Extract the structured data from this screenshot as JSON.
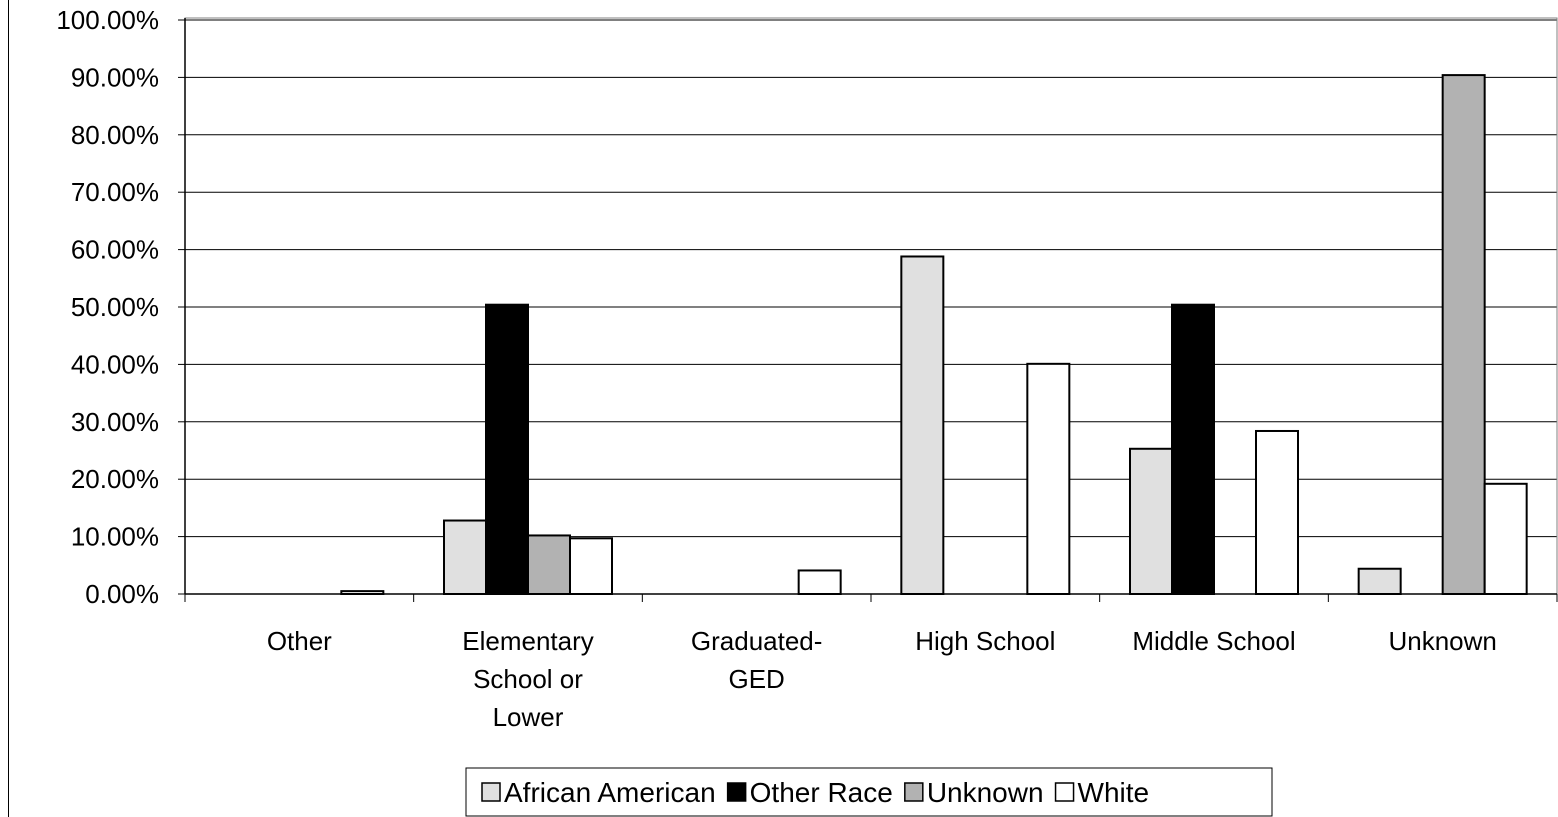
{
  "chart_data": {
    "type": "bar",
    "categories": [
      [
        "Other"
      ],
      [
        "Elementary",
        "School or",
        "Lower"
      ],
      [
        "Graduated-",
        "GED"
      ],
      [
        "High School"
      ],
      [
        "Middle School"
      ],
      [
        "Unknown"
      ]
    ],
    "series": [
      {
        "name": "African American",
        "color": "#e0e0e0",
        "values": [
          0,
          12.8,
          0,
          58.8,
          25.3,
          4.4
        ]
      },
      {
        "name": "Other Race",
        "color": "#000000",
        "values": [
          0,
          50.4,
          0,
          0,
          50.4,
          0
        ]
      },
      {
        "name": "Unknown",
        "color": "#b2b2b2",
        "values": [
          0,
          10.2,
          0,
          0,
          0,
          90.4
        ]
      },
      {
        "name": "White",
        "color": "#ffffff",
        "values": [
          0.5,
          9.7,
          4.1,
          40.1,
          28.4,
          19.2
        ]
      }
    ],
    "ylim": [
      0,
      100
    ],
    "yticks": [
      "0.00%",
      "10.00%",
      "20.00%",
      "30.00%",
      "40.00%",
      "50.00%",
      "60.00%",
      "70.00%",
      "80.00%",
      "90.00%",
      "100.00%"
    ],
    "grid": true,
    "legend_position": "bottom"
  }
}
